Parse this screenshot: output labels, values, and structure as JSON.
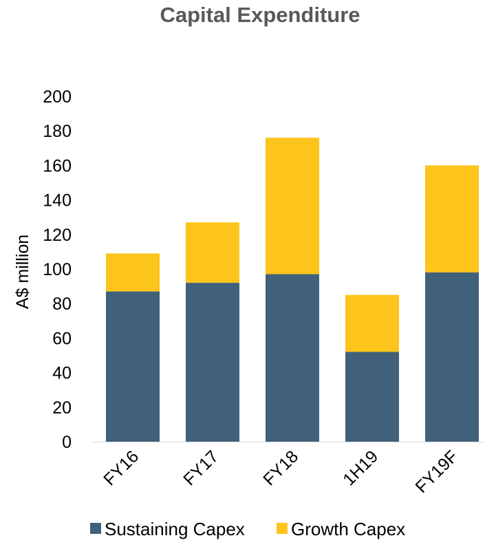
{
  "chart_data": {
    "type": "bar",
    "stacked": true,
    "title": "Capital Expenditure",
    "ylabel": "A$ million",
    "xlabel": "",
    "ylim": [
      0,
      200
    ],
    "yticks": [
      0,
      20,
      40,
      60,
      80,
      100,
      120,
      140,
      160,
      180,
      200
    ],
    "categories": [
      "FY16",
      "FY17",
      "FY18",
      "1H19",
      "FY19F"
    ],
    "series": [
      {
        "name": "Sustaining Capex",
        "color": "#41607A",
        "values": [
          87,
          92,
          97,
          52,
          98
        ]
      },
      {
        "name": "Growth Capex",
        "color": "#FDC41C",
        "values": [
          22,
          35,
          79,
          33,
          62
        ]
      }
    ],
    "grid": false,
    "legend": "bottom"
  }
}
